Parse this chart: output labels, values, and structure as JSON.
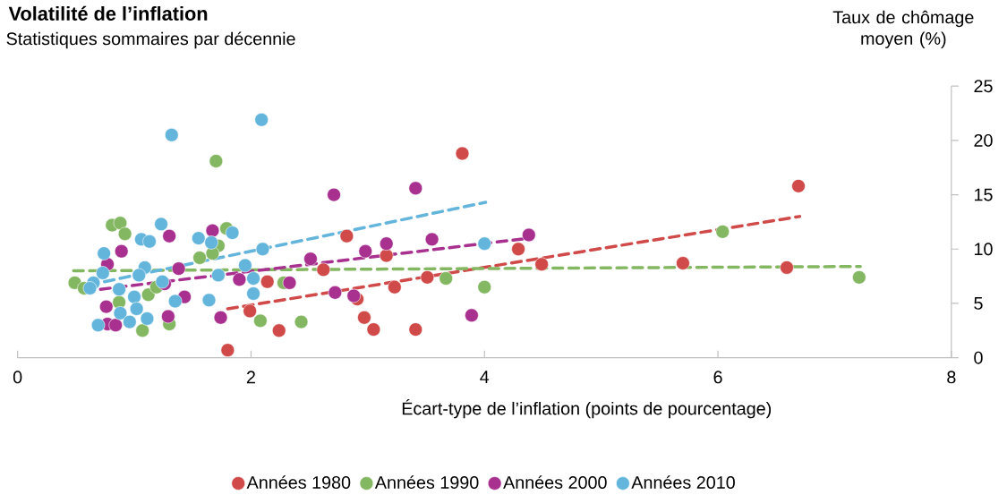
{
  "chart_data": {
    "type": "scatter",
    "title": "Volatilité de l’inflation",
    "subtitle": "Statistiques sommaires par décennie",
    "xlabel": "Écart-type de l’inflation (points de pourcentage)",
    "ylabel": "Taux de chômage moyen (%)",
    "xlim": [
      0,
      8
    ],
    "xticks": [
      0,
      2,
      4,
      6,
      8
    ],
    "ylim": [
      0,
      25
    ],
    "yticks": [
      0,
      5,
      10,
      15,
      20,
      25
    ],
    "legend": "bottom",
    "grid": false,
    "series": [
      {
        "name": "Années 1980",
        "marker": "circle",
        "color": "#d04a4a",
        "x": [
          1.8,
          2.14,
          1.99,
          2.24,
          2.62,
          2.82,
          2.91,
          2.97,
          3.05,
          3.23,
          3.16,
          3.51,
          3.41,
          3.81,
          4.29,
          4.49,
          5.7,
          6.59,
          6.69
        ],
        "values": [
          0.7,
          7.0,
          4.3,
          2.5,
          8.1,
          11.2,
          5.4,
          3.7,
          2.6,
          6.5,
          9.4,
          7.4,
          2.6,
          18.8,
          10.0,
          8.6,
          8.7,
          8.3,
          15.8
        ]
      },
      {
        "name": "Années 1990",
        "marker": "circle",
        "color": "#84b761",
        "x": [
          0.49,
          0.57,
          0.81,
          0.88,
          0.92,
          0.87,
          1.12,
          1.07,
          1.3,
          1.7,
          1.79,
          1.72,
          1.67,
          1.56,
          1.19,
          2.08,
          2.28,
          2.43,
          3.67,
          4.0,
          6.04,
          7.21
        ],
        "values": [
          6.9,
          6.4,
          12.2,
          12.4,
          11.4,
          5.1,
          5.8,
          2.5,
          3.1,
          18.1,
          11.9,
          10.3,
          9.6,
          9.2,
          6.5,
          3.4,
          6.9,
          3.3,
          7.3,
          6.5,
          11.6,
          7.4
        ]
      },
      {
        "name": "Années 2000",
        "marker": "circle",
        "color": "#a8308f",
        "x": [
          0.77,
          0.89,
          0.76,
          0.77,
          0.84,
          1.3,
          1.29,
          1.38,
          1.43,
          1.67,
          1.74,
          1.9,
          2.51,
          2.71,
          2.72,
          2.33,
          1.26,
          3.41,
          2.98,
          3.16,
          3.55,
          2.88,
          3.89,
          4.38
        ],
        "values": [
          8.6,
          9.8,
          4.7,
          3.1,
          3.0,
          11.2,
          3.8,
          8.2,
          5.6,
          11.7,
          3.7,
          7.2,
          9.1,
          15.0,
          6.0,
          6.9,
          6.8,
          15.6,
          9.8,
          10.5,
          10.9,
          5.7,
          3.9,
          11.3
        ]
      },
      {
        "name": "Années 2010",
        "marker": "circle",
        "color": "#64b5dc",
        "x": [
          1.32,
          2.09,
          1.23,
          1.06,
          1.13,
          0.74,
          0.73,
          0.65,
          0.62,
          0.87,
          1.09,
          1.04,
          1.24,
          1.0,
          1.02,
          0.88,
          0.96,
          1.11,
          0.69,
          1.35,
          1.64,
          1.55,
          1.66,
          1.84,
          1.72,
          1.95,
          2.02,
          2.02,
          2.1,
          4.0
        ],
        "values": [
          20.5,
          21.9,
          12.3,
          10.9,
          10.7,
          9.6,
          7.8,
          6.9,
          6.4,
          6.3,
          8.3,
          7.6,
          7.0,
          5.6,
          4.5,
          4.1,
          3.3,
          3.6,
          3.0,
          5.2,
          5.3,
          11.0,
          10.6,
          11.5,
          7.6,
          8.5,
          7.3,
          5.9,
          10.0,
          10.5
        ]
      },
      {
        "type": "line",
        "line_style": "dashed",
        "marker": "none",
        "color": "#d04a4a",
        "x": [
          1.8,
          6.7
        ],
        "values": [
          4.5,
          13.0
        ]
      },
      {
        "type": "line",
        "line_style": "dashed",
        "marker": "none",
        "color": "#84b761",
        "x": [
          0.48,
          7.22
        ],
        "values": [
          8.0,
          8.4
        ]
      },
      {
        "type": "line",
        "line_style": "dashed",
        "marker": "none",
        "color": "#a8308f",
        "x": [
          0.71,
          4.38
        ],
        "values": [
          6.3,
          11.0
        ]
      },
      {
        "type": "line",
        "line_style": "dashed",
        "marker": "none",
        "color": "#64b5dc",
        "x": [
          0.61,
          4.01
        ],
        "values": [
          6.7,
          14.3
        ]
      }
    ]
  }
}
